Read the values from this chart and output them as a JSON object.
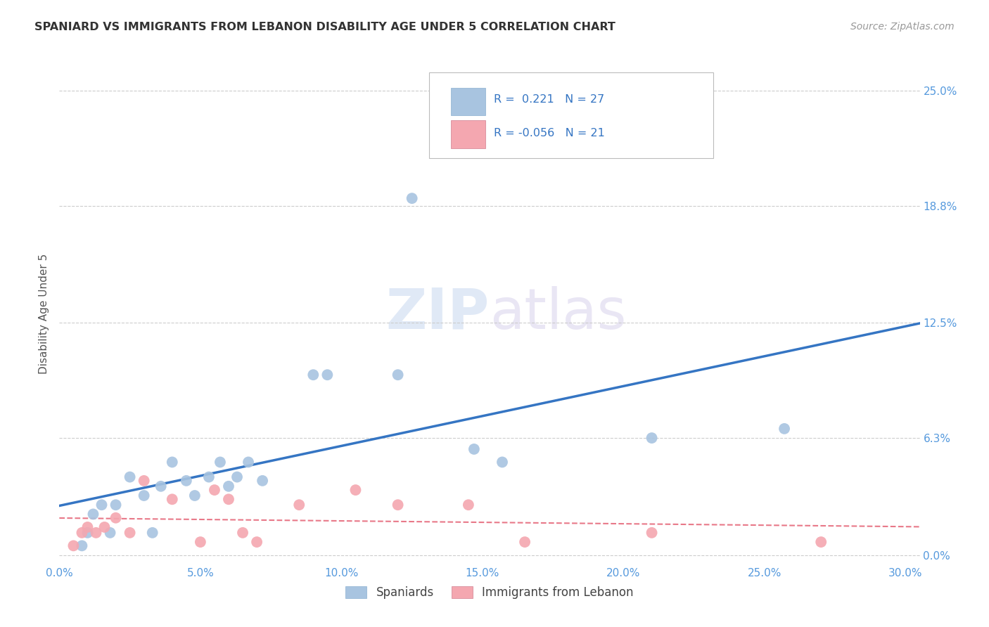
{
  "title": "SPANIARD VS IMMIGRANTS FROM LEBANON DISABILITY AGE UNDER 5 CORRELATION CHART",
  "source": "Source: ZipAtlas.com",
  "ylabel": "Disability Age Under 5",
  "xlabel_ticks": [
    "0.0%",
    "5.0%",
    "10.0%",
    "15.0%",
    "20.0%",
    "25.0%",
    "30.0%"
  ],
  "xlabel_vals": [
    0.0,
    0.05,
    0.1,
    0.15,
    0.2,
    0.25,
    0.3
  ],
  "ylabel_ticks": [
    "0.0%",
    "6.3%",
    "12.5%",
    "18.8%",
    "25.0%"
  ],
  "ylabel_vals": [
    0.0,
    0.063,
    0.125,
    0.188,
    0.25
  ],
  "xlim": [
    0.0,
    0.305
  ],
  "ylim": [
    -0.005,
    0.265
  ],
  "spaniards_x": [
    0.008,
    0.01,
    0.012,
    0.015,
    0.018,
    0.02,
    0.025,
    0.03,
    0.033,
    0.036,
    0.04,
    0.045,
    0.048,
    0.053,
    0.057,
    0.06,
    0.063,
    0.067,
    0.072,
    0.09,
    0.095,
    0.12,
    0.125,
    0.147,
    0.157,
    0.21,
    0.257
  ],
  "spaniards_y": [
    0.005,
    0.012,
    0.022,
    0.027,
    0.012,
    0.027,
    0.042,
    0.032,
    0.012,
    0.037,
    0.05,
    0.04,
    0.032,
    0.042,
    0.05,
    0.037,
    0.042,
    0.05,
    0.04,
    0.097,
    0.097,
    0.097,
    0.192,
    0.057,
    0.05,
    0.063,
    0.068
  ],
  "lebanon_x": [
    0.005,
    0.008,
    0.01,
    0.013,
    0.016,
    0.02,
    0.025,
    0.03,
    0.04,
    0.05,
    0.055,
    0.06,
    0.065,
    0.07,
    0.085,
    0.105,
    0.12,
    0.145,
    0.165,
    0.21,
    0.27
  ],
  "lebanon_y": [
    0.005,
    0.012,
    0.015,
    0.012,
    0.015,
    0.02,
    0.012,
    0.04,
    0.03,
    0.007,
    0.035,
    0.03,
    0.012,
    0.007,
    0.027,
    0.035,
    0.027,
    0.027,
    0.007,
    0.012,
    0.007
  ],
  "spaniards_color": "#a8c4e0",
  "lebanon_color": "#f4a7b0",
  "spaniards_line_color": "#3575c3",
  "lebanon_line_color": "#e87888",
  "legend_spaniards_label": "Spaniards",
  "legend_lebanon_label": "Immigrants from Lebanon",
  "r_spaniards": "0.221",
  "n_spaniards": "27",
  "r_lebanon": "-0.056",
  "n_lebanon": "21",
  "watermark_zip": "ZIP",
  "watermark_atlas": "atlas",
  "grid_color": "#cccccc",
  "title_color": "#333333",
  "axis_color": "#5599dd",
  "background_color": "#ffffff"
}
